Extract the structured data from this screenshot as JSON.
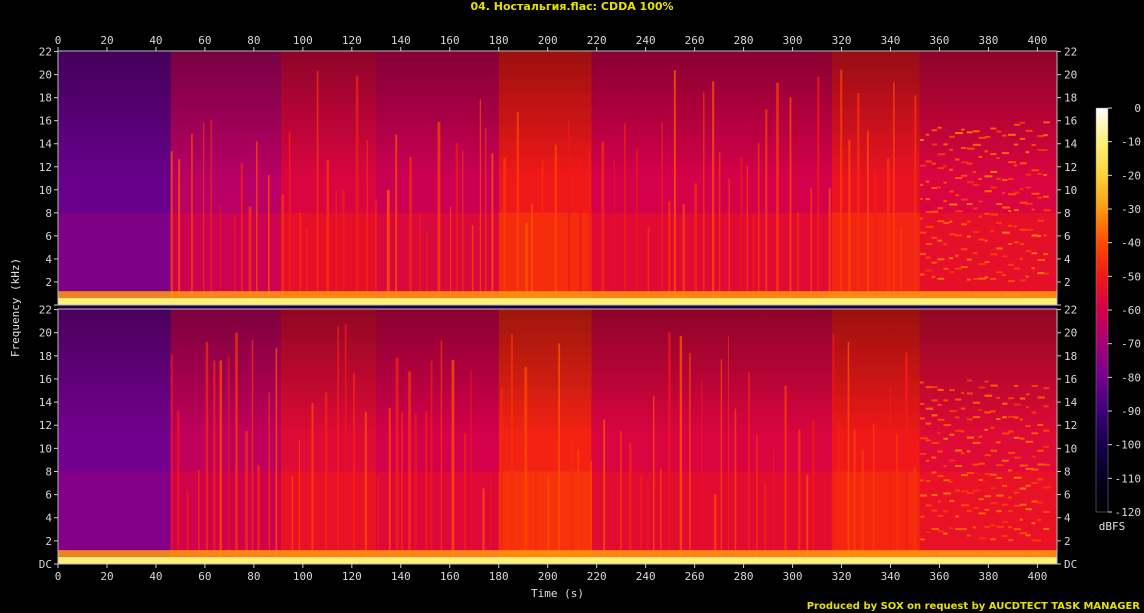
{
  "window": {
    "title": "04. Ностальгия.flac: CDDA 100%",
    "footer": "Produced by SOX on request by AUCDTECT TASK MANAGER"
  },
  "chart_data": {
    "type": "heatmap",
    "subtype": "spectrogram",
    "title": "04. Ностальгия.flac: CDDA 100%",
    "xlabel": "Time (s)",
    "ylabel": "Frequency (kHz)",
    "colorbar_label": "dBFS",
    "xlim": [
      0,
      408
    ],
    "ylim_khz": [
      0,
      22.05
    ],
    "channels": 2,
    "x_ticks": [
      0,
      20,
      40,
      60,
      80,
      100,
      120,
      140,
      160,
      180,
      200,
      220,
      240,
      260,
      280,
      300,
      320,
      340,
      360,
      380,
      400
    ],
    "y_ticks": [
      "DC",
      "2",
      "4",
      "6",
      "8",
      "10",
      "12",
      "14",
      "16",
      "18",
      "20",
      "22"
    ],
    "colorbar_ticks": [
      0,
      -10,
      -20,
      -30,
      -40,
      -50,
      -60,
      -70,
      -80,
      -90,
      -100,
      -110,
      -120
    ],
    "colorbar_range": [
      -120,
      0
    ],
    "colormap": [
      "#ffffff",
      "#fff07a",
      "#ffd23a",
      "#ff9a10",
      "#ff4a00",
      "#f01818",
      "#d4004a",
      "#a50077",
      "#72008e",
      "#3c007a",
      "#14004a",
      "#050020",
      "#000000"
    ],
    "segments_sec": [
      {
        "start": 0,
        "end": 46,
        "level_db": -82
      },
      {
        "start": 46,
        "end": 91,
        "level_db": -66
      },
      {
        "start": 91,
        "end": 130,
        "level_db": -58
      },
      {
        "start": 130,
        "end": 180,
        "level_db": -62
      },
      {
        "start": 180,
        "end": 218,
        "level_db": -50
      },
      {
        "start": 218,
        "end": 316,
        "level_db": -60
      },
      {
        "start": 316,
        "end": 352,
        "level_db": -52
      },
      {
        "start": 352,
        "end": 408,
        "level_db": -58
      }
    ]
  }
}
